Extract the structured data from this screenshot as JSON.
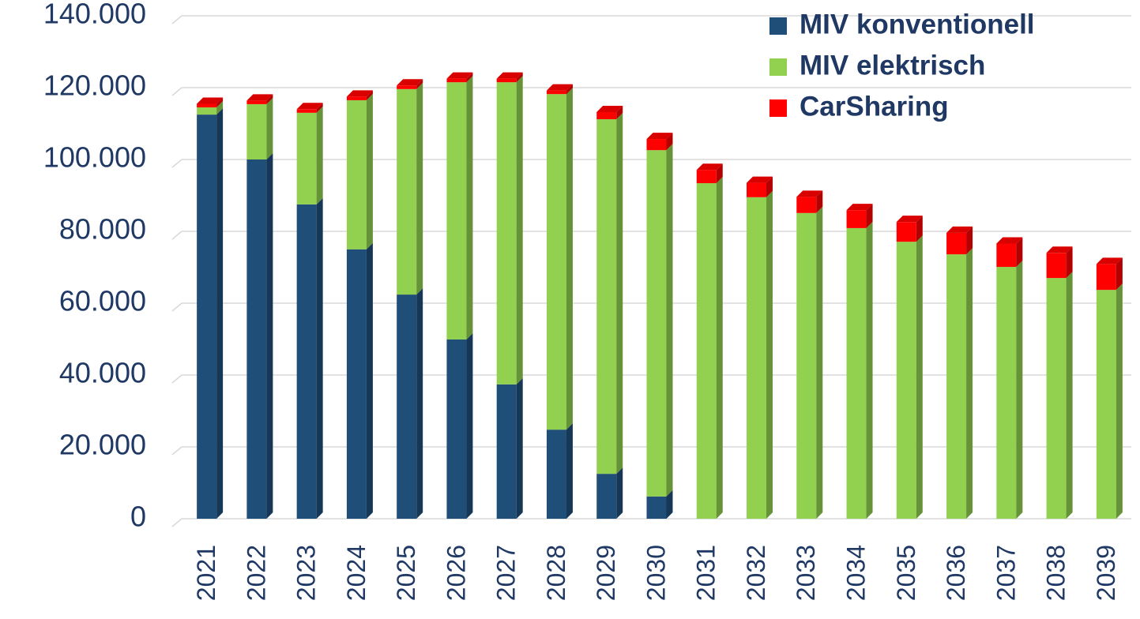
{
  "chart_data": {
    "type": "bar",
    "stacked": true,
    "categories": [
      "2021",
      "2022",
      "2023",
      "2024",
      "2025",
      "2026",
      "2027",
      "2028",
      "2029",
      "2030",
      "2031",
      "2032",
      "2033",
      "2034",
      "2035",
      "2036",
      "2037",
      "2038",
      "2039"
    ],
    "series": [
      {
        "name": "MIV konventionell",
        "color": "#1f4e79",
        "values": [
          112500,
          100000,
          87500,
          75000,
          62400,
          49900,
          37400,
          24800,
          12500,
          6200,
          0,
          0,
          0,
          0,
          0,
          0,
          0,
          0,
          0
        ]
      },
      {
        "name": "MIV elektrisch",
        "color": "#92d050",
        "values": [
          2000,
          15400,
          25500,
          41500,
          57200,
          71600,
          84100,
          93400,
          98700,
          96400,
          93400,
          89500,
          85100,
          80900,
          77100,
          73600,
          70100,
          67000,
          63700
        ]
      },
      {
        "name": "CarSharing",
        "color": "#ff0000",
        "values": [
          1000,
          1000,
          1000,
          1000,
          1000,
          1000,
          1000,
          1000,
          2000,
          3100,
          3700,
          4000,
          4500,
          5000,
          5500,
          6000,
          6500,
          7000,
          7200
        ]
      }
    ],
    "ylim": [
      0,
      140000
    ],
    "yticks": [
      0,
      {
        "value": 20000,
        "label": "20.000"
      },
      {
        "value": 40000,
        "label": "40.000"
      },
      {
        "value": 60000,
        "label": "60.000"
      },
      {
        "value": 80000,
        "label": "80.000"
      },
      {
        "value": 100000,
        "label": "100.000"
      },
      {
        "value": 120000,
        "label": "120.000"
      },
      {
        "value": 140000,
        "label": "140.000"
      }
    ],
    "grid": true,
    "legend": "top-right"
  }
}
